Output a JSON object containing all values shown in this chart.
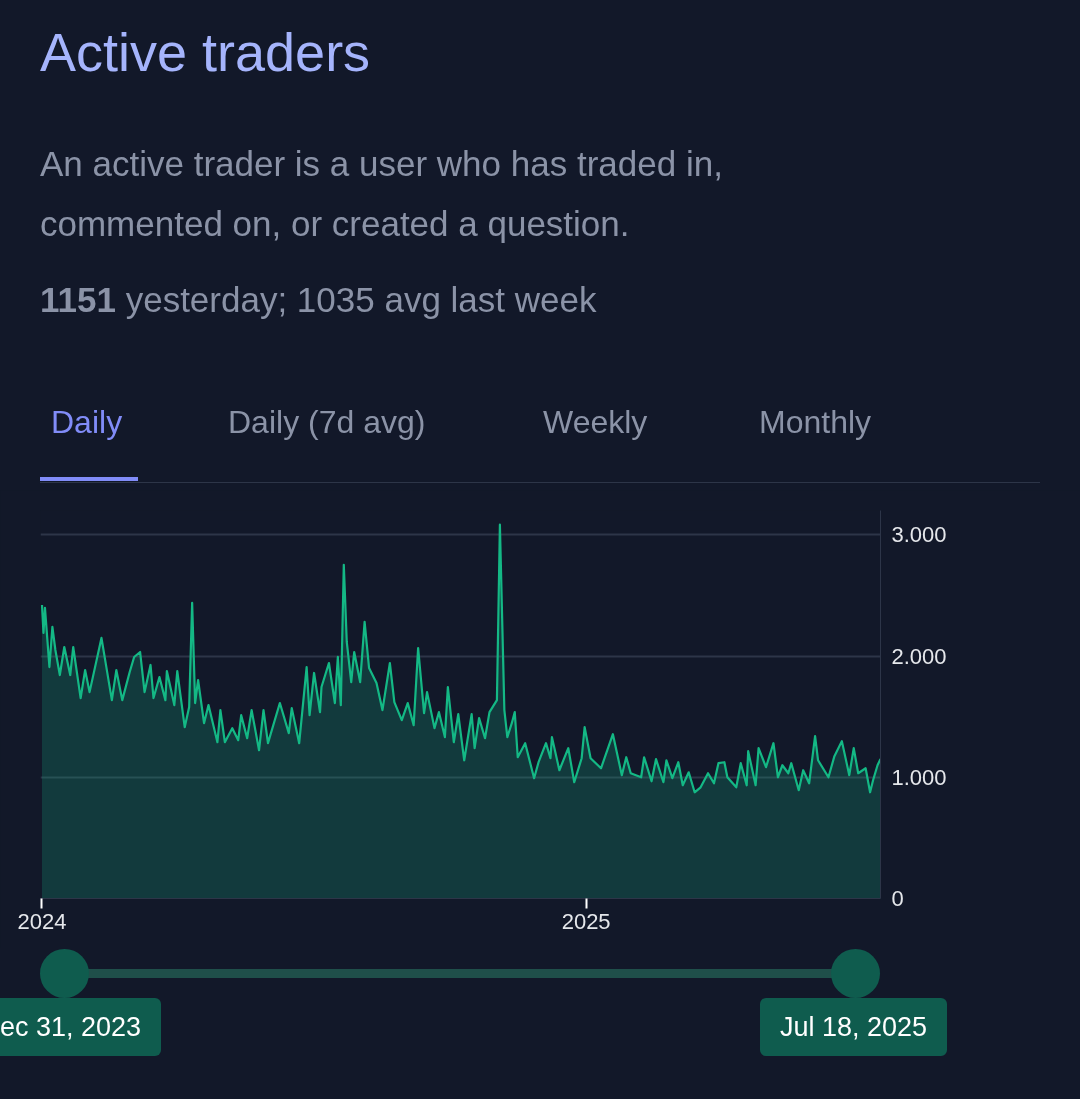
{
  "chart_data": {
    "type": "area",
    "title": "Active traders",
    "subtitle": "An active trader is a user who has traded in, commented on, or created a question.",
    "annotations": [
      "1151 yesterday; 1035 avg last week",
      "Daily",
      "Daily (7d avg)",
      "Weekly",
      "Monthly",
      "ec 31, 2023",
      "Jul 18, 2025"
    ],
    "x": [
      "2024-01-01",
      "2024-01-02",
      "2024-01-03",
      "2024-01-06",
      "2024-01-08",
      "2024-01-10",
      "2024-01-13",
      "2024-01-16",
      "2024-01-20",
      "2024-01-22",
      "2024-01-27",
      "2024-01-30",
      "2024-02-02",
      "2024-02-10",
      "2024-02-17",
      "2024-02-20",
      "2024-02-24",
      "2024-02-29",
      "2024-03-03",
      "2024-03-07",
      "2024-03-10",
      "2024-03-14",
      "2024-03-16",
      "2024-03-20",
      "2024-03-24",
      "2024-03-25",
      "2024-03-30",
      "2024-04-01",
      "2024-04-06",
      "2024-04-09",
      "2024-04-11",
      "2024-04-13",
      "2024-04-15",
      "2024-04-19",
      "2024-04-22",
      "2024-04-28",
      "2024-04-30",
      "2024-05-03",
      "2024-05-08",
      "2024-05-12",
      "2024-05-14",
      "2024-05-18",
      "2024-05-21",
      "2024-05-26",
      "2024-05-29",
      "2024-06-01",
      "2024-06-09",
      "2024-06-15",
      "2024-06-17",
      "2024-06-22",
      "2024-06-27",
      "2024-06-29",
      "2024-07-02",
      "2024-07-06",
      "2024-07-07",
      "2024-07-12",
      "2024-07-16",
      "2024-07-18",
      "2024-07-20",
      "2024-07-22",
      "2024-07-24",
      "2024-07-27",
      "2024-07-29",
      "2024-08-02",
      "2024-08-05",
      "2024-08-08",
      "2024-08-13",
      "2024-08-17",
      "2024-08-22",
      "2024-08-25",
      "2024-08-30",
      "2024-09-03",
      "2024-09-07",
      "2024-09-10",
      "2024-09-14",
      "2024-09-16",
      "2024-09-21",
      "2024-09-24",
      "2024-09-28",
      "2024-09-30",
      "2024-10-04",
      "2024-10-07",
      "2024-10-11",
      "2024-10-16",
      "2024-10-18",
      "2024-10-21",
      "2024-10-25",
      "2024-10-28",
      "2024-11-02",
      "2024-11-04",
      "2024-11-07",
      "2024-11-09",
      "2024-11-12",
      "2024-11-14",
      "2024-11-16",
      "2024-11-21",
      "2024-11-27",
      "2024-11-30",
      "2024-12-05",
      "2024-12-08",
      "2024-12-09",
      "2024-12-14",
      "2024-12-20",
      "2024-12-24",
      "2024-12-29",
      "2024-12-31",
      "2025-01-04",
      "2025-01-11",
      "2025-01-19",
      "2025-01-25",
      "2025-01-28",
      "2025-01-31",
      "2025-02-07",
      "2025-02-09",
      "2025-02-14",
      "2025-02-17",
      "2025-02-22",
      "2025-02-24",
      "2025-02-28",
      "2025-03-04",
      "2025-03-07",
      "2025-03-11",
      "2025-03-15",
      "2025-03-19",
      "2025-03-24",
      "2025-03-28",
      "2025-03-31",
      "2025-04-04",
      "2025-04-06",
      "2025-04-12",
      "2025-04-15",
      "2025-04-19",
      "2025-04-20",
      "2025-04-25",
      "2025-04-27",
      "2025-05-02",
      "2025-05-07",
      "2025-05-10",
      "2025-05-13",
      "2025-05-17",
      "2025-05-19",
      "2025-05-24",
      "2025-05-27",
      "2025-05-31",
      "2025-06-04",
      "2025-06-06",
      "2025-06-13",
      "2025-06-17",
      "2025-06-22",
      "2025-06-27",
      "2025-06-30",
      "2025-07-03",
      "2025-07-08",
      "2025-07-11",
      "2025-07-13",
      "2025-07-16",
      "2025-07-18"
    ],
    "series": [
      {
        "color": "#14b885",
        "values": [
          2421,
          2190,
          2397,
          1909,
          2240,
          2050,
          1843,
          2074,
          1843,
          2074,
          1653,
          1884,
          1702,
          2149,
          1636,
          1884,
          1636,
          1868,
          1992,
          2033,
          1702,
          1926,
          1653,
          1826,
          1636,
          1876,
          1595,
          1876,
          1413,
          1579,
          2438,
          1612,
          1802,
          1446,
          1595,
          1289,
          1554,
          1289,
          1405,
          1306,
          1512,
          1322,
          1554,
          1223,
          1554,
          1281,
          1612,
          1364,
          1570,
          1281,
          1909,
          1512,
          1860,
          1537,
          1744,
          1942,
          1612,
          1992,
          1595,
          2752,
          2116,
          1785,
          2033,
          1785,
          2281,
          1901,
          1777,
          1554,
          1942,
          1620,
          1471,
          1612,
          1430,
          2066,
          1529,
          1702,
          1405,
          1537,
          1331,
          1744,
          1289,
          1521,
          1140,
          1521,
          1240,
          1488,
          1322,
          1537,
          1636,
          3083,
          1554,
          1331,
          1446,
          1537,
          1165,
          1281,
          992,
          1124,
          1281,
          1157,
          1331,
          1058,
          1240,
          959,
          1157,
          1413,
          1157,
          1074,
          1355,
          1017,
          1165,
          1033,
          1000,
          1165,
          967,
          1149,
          959,
          1140,
          992,
          1124,
          934,
          1041,
          876,
          917,
          1033,
          950,
          1116,
          1124,
          1000,
          917,
          1116,
          934,
          1215,
          934,
          1240,
          1083,
          1281,
          1000,
          1099,
          1033,
          1116,
          893,
          1058,
          950,
          1339,
          1140,
          1000,
          1174,
          1298,
          1017,
          1240,
          1033,
          1074,
          876,
          975,
          1099,
          1151
        ]
      }
    ],
    "xlim": [
      "2023-12-31",
      "2025-07-18"
    ],
    "xticks": [
      {
        "value": "2024-01-01",
        "label": "2024"
      },
      {
        "value": "2025-01-01",
        "label": "2025"
      }
    ],
    "ylim": [
      0,
      3200
    ],
    "yticks": [
      {
        "value": 0,
        "label": "0"
      },
      {
        "value": 1000,
        "label": "1.000"
      },
      {
        "value": 2000,
        "label": "2.000"
      },
      {
        "value": 3000,
        "label": "3.000"
      }
    ],
    "grid": "y",
    "line_style": "solid"
  }
}
